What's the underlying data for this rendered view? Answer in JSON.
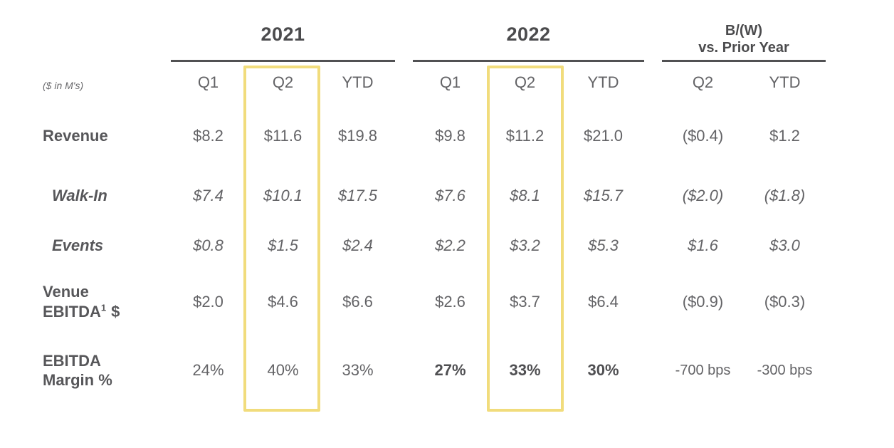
{
  "page": {
    "background_color": "#ffffff",
    "text_dark": "#4b4b4d",
    "text_gray": "#636366",
    "rule_color": "#515153"
  },
  "table": {
    "units_note": "($ in M's)",
    "column_groups": [
      {
        "label": "2021",
        "columns": [
          "Q1",
          "Q2",
          "YTD"
        ]
      },
      {
        "label": "2022",
        "columns": [
          "Q1",
          "Q2",
          "YTD"
        ]
      },
      {
        "label_line1": "B/(W)",
        "label_line2": "vs. Prior Year",
        "columns": [
          "Q2",
          "YTD"
        ]
      }
    ],
    "subheaders": {
      "y2021_q1": "Q1",
      "y2021_q2": "Q2",
      "y2021_ytd": "YTD",
      "y2022_q1": "Q1",
      "y2022_q2": "Q2",
      "y2022_ytd": "YTD",
      "bw_q2": "Q2",
      "bw_ytd": "YTD"
    },
    "rows": [
      {
        "label": "Revenue",
        "values": [
          "$8.2",
          "$11.6",
          "$19.8",
          "$9.8",
          "$11.2",
          "$21.0",
          "($0.4)",
          "$1.2"
        ]
      },
      {
        "label": "Walk-In",
        "values": [
          "$7.4",
          "$10.1",
          "$17.5",
          "$7.6",
          "$8.1",
          "$15.7",
          "($2.0)",
          "($1.8)"
        ]
      },
      {
        "label": "Events",
        "values": [
          "$0.8",
          "$1.5",
          "$2.4",
          "$2.2",
          "$3.2",
          "$5.3",
          "$1.6",
          "$3.0"
        ]
      },
      {
        "label_line1": "Venue",
        "label_line2_prefix": "EBITDA",
        "label_superscript": "1",
        "label_line2_suffix": "$",
        "values": [
          "$2.0",
          "$4.6",
          "$6.6",
          "$2.6",
          "$3.7",
          "$6.4",
          "($0.9)",
          "($0.3)"
        ]
      },
      {
        "label_line1": "EBITDA",
        "label_line2": "Margin %",
        "values": [
          "24%",
          "40%",
          "33%",
          "27%",
          "33%",
          "30%",
          "-700 bps",
          "-300 bps"
        ]
      }
    ],
    "highlight": {
      "color": "#f1dc7c",
      "highlighted_columns": [
        "2021 Q2",
        "2022 Q2"
      ]
    }
  },
  "chart_data": {
    "type": "table",
    "units": "($ in M's)",
    "columns": [
      "2021 Q1",
      "2021 Q2",
      "2021 YTD",
      "2022 Q1",
      "2022 Q2",
      "2022 YTD",
      "B/(W) vs. Prior Year Q2",
      "B/(W) vs. Prior Year YTD"
    ],
    "rows": [
      {
        "label": "Revenue",
        "values": [
          8.2,
          11.6,
          19.8,
          9.8,
          11.2,
          21.0,
          -0.4,
          1.2
        ]
      },
      {
        "label": "Walk-In",
        "values": [
          7.4,
          10.1,
          17.5,
          7.6,
          8.1,
          15.7,
          -2.0,
          -1.8
        ]
      },
      {
        "label": "Events",
        "values": [
          0.8,
          1.5,
          2.4,
          2.2,
          3.2,
          5.3,
          1.6,
          3.0
        ]
      },
      {
        "label": "Venue EBITDA $",
        "values": [
          2.0,
          4.6,
          6.6,
          2.6,
          3.7,
          6.4,
          -0.9,
          -0.3
        ]
      },
      {
        "label": "EBITDA Margin %",
        "values": [
          "24%",
          "40%",
          "33%",
          "27%",
          "33%",
          "30%",
          "-700 bps",
          "-300 bps"
        ]
      }
    ],
    "highlighted_columns": [
      "2021 Q2",
      "2022 Q2"
    ]
  }
}
